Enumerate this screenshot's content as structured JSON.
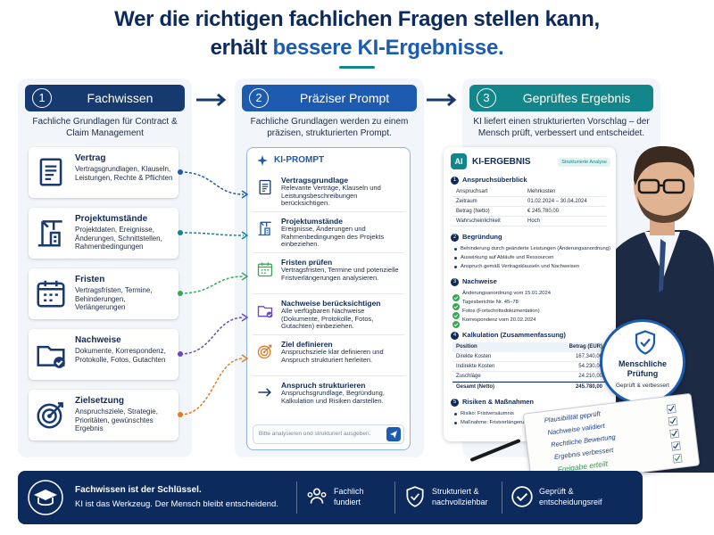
{
  "header": {
    "title_line1": "Wer die richtigen fachlichen Fragen stellen kann,",
    "title_line2": "erhält",
    "title_highlight": "bessere KI-Ergebnisse."
  },
  "columns": [
    {
      "number": "1",
      "title": "Fachwissen",
      "description": "Fachliche Grundlagen für Contract & Claim Management"
    },
    {
      "number": "2",
      "title": "Präziser Prompt",
      "description": "Fachliche Grundlagen werden zu einem präzisen, strukturierten Prompt."
    },
    {
      "number": "3",
      "title": "Geprüftes Ergebnis",
      "description": "KI liefert einen strukturierten Vorschlag – der Mensch prüft, verbessert und entscheidet."
    }
  ],
  "knowledge_items": [
    {
      "title": "Vertrag",
      "description": "Vertragsgrundlagen, Klauseln, Leistungen, Rechte & Pflichten"
    },
    {
      "title": "Projektumstände",
      "description": "Projektdaten, Ereignisse, Änderungen, Schnittstellen, Rahmenbedingungen"
    },
    {
      "title": "Fristen",
      "description": "Vertragsfristen, Termine, Behinderungen, Verlängerungen"
    },
    {
      "title": "Nachweise",
      "description": "Dokumente, Korrespondenz, Protokolle, Fotos, Gutachten"
    },
    {
      "title": "Zielsetzung",
      "description": "Anspruchsziele, Strategie, Prioritäten, gewünschtes Ergebnis"
    }
  ],
  "prompt": {
    "label": "KI-PROMPT",
    "items": [
      {
        "title": "Vertragsgrundlage",
        "description": "Relevante Verträge, Klauseln und Leistungsbeschreibungen berücksichtigen."
      },
      {
        "title": "Projektumstände",
        "description": "Ereignisse, Änderungen und Rahmenbedingungen des Projekts einbeziehen."
      },
      {
        "title": "Fristen prüfen",
        "description": "Vertragsfristen, Termine und potenzielle Fristverlängerungen analysieren."
      },
      {
        "title": "Nachweise berücksichtigen",
        "description": "Alle verfügbaren Nachweise (Dokumente, Protokolle, Fotos, Gutachten) einbeziehen."
      },
      {
        "title": "Ziel definieren",
        "description": "Anspruchsziele klar definieren und Anspruch strukturiert herleiten."
      },
      {
        "title": "Anspruch strukturieren",
        "description": "Anspruchsgrundlage, Begründung, Kalkulation und Risiken darstellen."
      }
    ],
    "input_placeholder": "Bitte analysieren und strukturiert ausgeben."
  },
  "result": {
    "logo": "AI",
    "label": "KI-ERGEBNIS",
    "badge": "Strukturierte Analyse",
    "sections": [
      {
        "number": "1",
        "title": "Anspruchsüberblick",
        "rows": [
          [
            "Anspruchsart",
            "Mehrkosten"
          ],
          [
            "Zeitraum",
            "01.02.2024 – 30.04.2024"
          ],
          [
            "Betrag (Netto)",
            "€ 245.780,00"
          ],
          [
            "Wahrscheinlichkeit",
            "Hoch"
          ]
        ]
      },
      {
        "number": "2",
        "title": "Begründung",
        "bullets": [
          "Behinderung durch geänderte Leistungen (Änderungsanordnung)",
          "Auswirkung auf Abläufe und Ressourcen",
          "Anspruch gemäß Vertragsklauseln und Nachweisen"
        ]
      },
      {
        "number": "3",
        "title": "Nachweise",
        "checks": [
          "Änderungsanordnung vom 15.01.2024",
          "Tagesberichte Nr. 45–78",
          "Fotos (Fortschrittsdokumentation)",
          "Korrespondenz vom 20.02.2024"
        ]
      },
      {
        "number": "4",
        "title": "Kalkulation (Zusammenfassung)",
        "header": [
          "Position",
          "Betrag (EUR)"
        ],
        "rows": [
          [
            "Direkte Kosten",
            "167.340,00"
          ],
          [
            "Indirekte Kosten",
            "54.230,00"
          ],
          [
            "Zuschläge",
            "24.210,00"
          ]
        ],
        "total": [
          "Gesamt (Netto)",
          "245.780,00"
        ]
      },
      {
        "number": "5",
        "title": "Risiken & Maßnahmen",
        "bullets": [
          "Risiko: Fristversäumnis",
          "Maßnahme: Fristverlängerung beantragen"
        ]
      }
    ]
  },
  "review_badge": {
    "title": "Menschliche Prüfung",
    "subtitle": "Geprüft & verbessert"
  },
  "checklist": [
    "Plausibilität geprüft",
    "Nachweise validiert",
    "Rechtliche Bewertung",
    "Ergebnis verbessert",
    "Freigabe erteilt"
  ],
  "footer": {
    "headline": "Fachwissen ist der Schlüssel.",
    "text": "KI ist das Werkzeug. Der Mensch bleibt entscheidend.",
    "features": [
      "Fachlich fundiert",
      "Strukturiert & nachvollziehbar",
      "Geprüft & entscheidungsreif"
    ]
  }
}
